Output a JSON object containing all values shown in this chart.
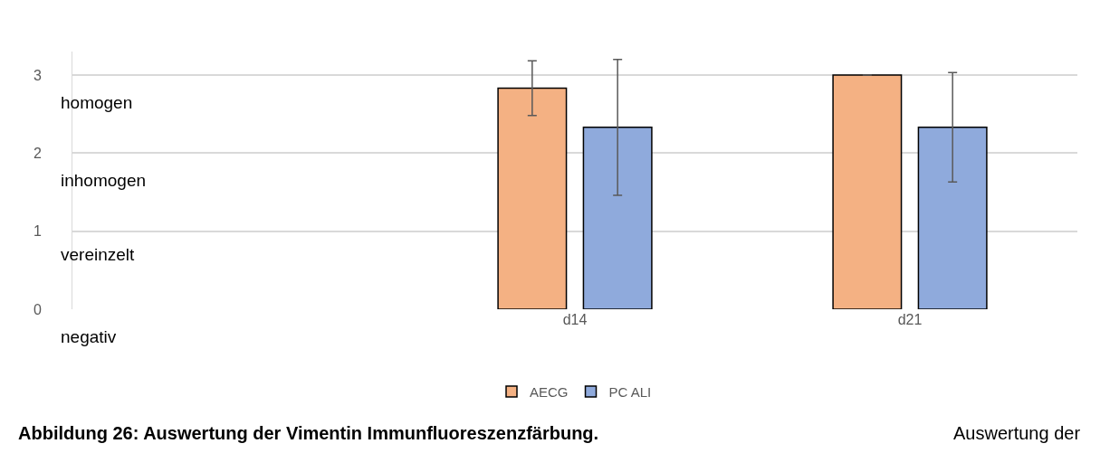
{
  "chart_data": {
    "type": "bar",
    "categories": [
      null,
      "d14",
      "d21"
    ],
    "series": [
      {
        "name": "AECG",
        "color": "#f4b183",
        "values": [
          null,
          2.83,
          3.0
        ],
        "errors": [
          null,
          0.35,
          0
        ]
      },
      {
        "name": "PC ALI",
        "color": "#8faadc",
        "values": [
          null,
          2.33,
          2.33
        ],
        "errors": [
          null,
          0.87,
          0.7
        ]
      }
    ],
    "ylim": [
      0,
      3.3
    ],
    "yticks": [
      0,
      1,
      2,
      3
    ],
    "grid": "y",
    "legend": "bottom",
    "annotations": [
      "homogen",
      "inhomogen",
      "vereinzelt",
      "negativ",
      "Abbildung 26: Auswertung der Vimentin Immunfluoreszenzfärbung.",
      "Auswertung der"
    ]
  }
}
